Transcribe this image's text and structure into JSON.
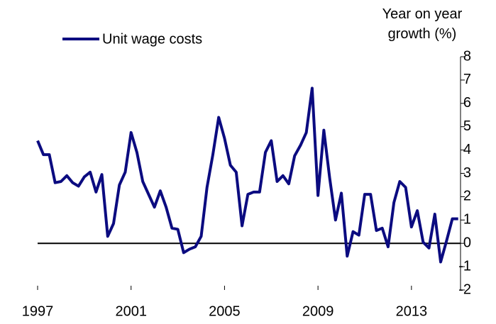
{
  "chart_data": {
    "type": "line",
    "y_label": "Year on year growth (%)",
    "x": [
      1997,
      1997.25,
      1997.5,
      1997.75,
      1998,
      1998.25,
      1998.5,
      1998.75,
      1999,
      1999.25,
      1999.5,
      1999.75,
      2000,
      2000.25,
      2000.5,
      2000.75,
      2001,
      2001.25,
      2001.5,
      2001.75,
      2002,
      2002.25,
      2002.5,
      2002.75,
      2003,
      2003.25,
      2003.5,
      2003.75,
      2004,
      2004.25,
      2004.5,
      2004.75,
      2005,
      2005.25,
      2005.5,
      2005.75,
      2006,
      2006.25,
      2006.5,
      2006.75,
      2007,
      2007.25,
      2007.5,
      2007.75,
      2008,
      2008.25,
      2008.5,
      2008.75,
      2009,
      2009.25,
      2009.5,
      2009.75,
      2010,
      2010.25,
      2010.5,
      2010.75,
      2011,
      2011.25,
      2011.5,
      2011.75,
      2012,
      2012.25,
      2012.5,
      2012.75,
      2013,
      2013.25,
      2013.5,
      2013.75,
      2014,
      2014.25,
      2014.5,
      2014.75,
      2015
    ],
    "series": [
      {
        "name": "Unit wage costs",
        "color": "#0b0b80",
        "values": [
          4.4,
          3.8,
          3.8,
          2.6,
          2.65,
          2.9,
          2.6,
          2.45,
          2.85,
          3.05,
          2.2,
          2.95,
          0.3,
          0.85,
          2.5,
          3.05,
          4.75,
          3.9,
          2.65,
          2.1,
          1.55,
          2.25,
          1.55,
          0.65,
          0.6,
          -0.4,
          -0.25,
          -0.15,
          0.3,
          2.4,
          3.8,
          5.4,
          4.5,
          3.35,
          3.05,
          0.75,
          2.1,
          2.2,
          2.2,
          3.9,
          4.4,
          2.65,
          2.9,
          2.55,
          3.75,
          4.2,
          4.75,
          6.65,
          2.05,
          4.85,
          2.8,
          1.0,
          2.15,
          -0.55,
          0.5,
          0.35,
          2.1,
          2.1,
          0.55,
          0.65,
          -0.15,
          1.75,
          2.65,
          2.4,
          0.7,
          1.4,
          0.05,
          -0.2,
          1.25,
          -0.8,
          0.1,
          1.05,
          1.05
        ]
      }
    ],
    "xlim": [
      1997,
      2015.1
    ],
    "xticks": [
      1997,
      2001,
      2005,
      2009,
      2013
    ],
    "ylim": [
      -2,
      8
    ],
    "yticks": [
      -2,
      -1,
      0,
      1,
      2,
      3,
      4,
      5,
      6,
      7,
      8
    ],
    "zero_line": true
  }
}
